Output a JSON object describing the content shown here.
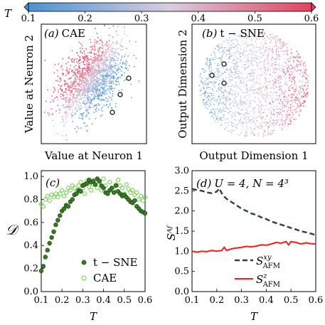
{
  "colorbar": {
    "label": "T",
    "ticks": [
      "0.1",
      "0.2",
      "0.3",
      "0.4",
      "0.5",
      "0.6"
    ],
    "min": 0.1,
    "max": 0.6,
    "low_color": "#4a93d4",
    "mid_color": "#d9cde0",
    "high_color": "#e2425f"
  },
  "panels": {
    "a": {
      "tag": "(a)",
      "title": "CAE",
      "xlabel": "Value at Neuron 1",
      "ylabel": "Value at Neuron 2"
    },
    "b": {
      "tag": "(b)",
      "title": "t − SNE",
      "xlabel": "Output Dimension 1",
      "ylabel": "Output Dimension 2"
    },
    "c": {
      "tag": "(c)",
      "xlabel": "T",
      "ylabel": "𝒟"
    },
    "d": {
      "tag": "(d)",
      "params": "U = 4,  N = 4³",
      "xlabel": "T",
      "ylabel": "Sᴬᶠ"
    }
  },
  "chart_data": [
    {
      "panel": "c",
      "type": "scatter",
      "xlim": [
        0.1,
        0.6
      ],
      "ylim": [
        0.0,
        1.05
      ],
      "xticks": [
        "0.1",
        "0.2",
        "0.3",
        "0.4",
        "0.5",
        "0.6"
      ],
      "yticks": [
        "0.0",
        "0.2",
        "0.4",
        "0.6",
        "0.8",
        "1.0"
      ],
      "legend_position": "bottom-right",
      "series": [
        {
          "name": "t − SNE",
          "marker": "filled-circle",
          "color": "#3c7a27",
          "edge": "#1f4a12",
          "x": [
            0.1,
            0.11,
            0.12,
            0.13,
            0.14,
            0.15,
            0.16,
            0.17,
            0.18,
            0.19,
            0.2,
            0.21,
            0.22,
            0.23,
            0.24,
            0.25,
            0.26,
            0.27,
            0.28,
            0.29,
            0.3,
            0.31,
            0.32,
            0.33,
            0.34,
            0.35,
            0.36,
            0.37,
            0.38,
            0.39,
            0.4,
            0.41,
            0.42,
            0.43,
            0.44,
            0.45,
            0.46,
            0.47,
            0.48,
            0.49,
            0.5,
            0.51,
            0.52,
            0.53,
            0.54,
            0.55,
            0.56,
            0.57,
            0.58,
            0.59,
            0.6
          ],
          "y": [
            0.18,
            0.22,
            0.3,
            0.36,
            0.42,
            0.47,
            0.52,
            0.58,
            0.62,
            0.66,
            0.7,
            0.72,
            0.75,
            0.74,
            0.78,
            0.8,
            0.84,
            0.85,
            0.88,
            0.87,
            0.92,
            0.93,
            0.94,
            0.97,
            0.95,
            0.96,
            0.93,
            0.98,
            0.96,
            0.92,
            0.9,
            0.86,
            0.85,
            0.88,
            0.9,
            0.86,
            0.92,
            0.87,
            0.85,
            0.83,
            0.84,
            0.82,
            0.8,
            0.78,
            0.77,
            0.79,
            0.74,
            0.72,
            0.7,
            0.69,
            0.68
          ]
        },
        {
          "name": "CAE",
          "marker": "open-circle",
          "color": "#6fcf4a",
          "x": [
            0.1,
            0.11,
            0.12,
            0.13,
            0.14,
            0.15,
            0.16,
            0.17,
            0.18,
            0.19,
            0.2,
            0.21,
            0.22,
            0.23,
            0.24,
            0.25,
            0.26,
            0.27,
            0.28,
            0.29,
            0.3,
            0.31,
            0.32,
            0.33,
            0.34,
            0.35,
            0.36,
            0.37,
            0.38,
            0.39,
            0.4,
            0.41,
            0.42,
            0.43,
            0.44,
            0.45,
            0.46,
            0.47,
            0.48,
            0.49,
            0.5,
            0.51,
            0.52,
            0.53,
            0.54,
            0.55,
            0.56,
            0.57,
            0.58,
            0.59,
            0.6
          ],
          "y": [
            0.76,
            0.74,
            0.8,
            0.83,
            0.79,
            0.84,
            0.82,
            0.85,
            0.82,
            0.85,
            0.88,
            0.83,
            0.86,
            0.9,
            0.88,
            0.92,
            0.9,
            0.87,
            0.92,
            0.95,
            0.9,
            0.85,
            0.96,
            0.91,
            0.88,
            0.93,
            0.97,
            0.9,
            0.95,
            0.88,
            0.98,
            0.92,
            0.86,
            0.95,
            0.9,
            0.88,
            0.93,
            0.97,
            0.92,
            0.9,
            0.85,
            0.93,
            0.89,
            0.86,
            0.88,
            0.84,
            0.86,
            0.8,
            0.83,
            0.79,
            0.82
          ]
        }
      ]
    },
    {
      "panel": "d",
      "type": "line",
      "xlim": [
        0.1,
        0.6
      ],
      "ylim": [
        0.0,
        3.0
      ],
      "xticks": [
        "0.1",
        "0.2",
        "0.3",
        "0.4",
        "0.5",
        "0.6"
      ],
      "yticks": [
        "0.0",
        "0.5",
        "1.0",
        "1.5",
        "2.0",
        "2.5",
        "3.0"
      ],
      "legend_position": "bottom-right",
      "series": [
        {
          "name": "S^xy_AFM",
          "legend_main": "S",
          "legend_sup": "xy",
          "legend_sub": "AFM",
          "style": "dashed",
          "color": "#2c3e50",
          "x": [
            0.1,
            0.12,
            0.14,
            0.16,
            0.18,
            0.2,
            0.21,
            0.22,
            0.23,
            0.24,
            0.26,
            0.28,
            0.3,
            0.32,
            0.34,
            0.36,
            0.38,
            0.4,
            0.42,
            0.44,
            0.46,
            0.48,
            0.5,
            0.52,
            0.54,
            0.56,
            0.58,
            0.6
          ],
          "y": [
            2.55,
            2.52,
            2.5,
            2.46,
            2.44,
            2.48,
            2.56,
            2.44,
            2.36,
            2.3,
            2.22,
            2.14,
            2.06,
            2.0,
            1.94,
            1.9,
            1.84,
            1.8,
            1.74,
            1.7,
            1.66,
            1.62,
            1.58,
            1.54,
            1.5,
            1.47,
            1.44,
            1.4
          ]
        },
        {
          "name": "S^z_AFM",
          "legend_main": "S",
          "legend_sup": "z",
          "legend_sub": "AFM",
          "style": "solid",
          "color": "#ff1a1a",
          "x": [
            0.1,
            0.12,
            0.14,
            0.16,
            0.18,
            0.2,
            0.22,
            0.23,
            0.24,
            0.26,
            0.28,
            0.3,
            0.32,
            0.34,
            0.36,
            0.38,
            0.4,
            0.42,
            0.44,
            0.46,
            0.48,
            0.49,
            0.5,
            0.52,
            0.54,
            0.56,
            0.58,
            0.6
          ],
          "y": [
            1.0,
            0.98,
            1.0,
            0.99,
            1.02,
            1.0,
            1.02,
            1.1,
            1.02,
            1.06,
            1.08,
            1.1,
            1.12,
            1.11,
            1.13,
            1.16,
            1.15,
            1.18,
            1.22,
            1.2,
            1.24,
            1.16,
            1.24,
            1.22,
            1.18,
            1.21,
            1.19,
            1.18
          ]
        }
      ]
    },
    {
      "panel": "a",
      "type": "scatter",
      "color_by": "T",
      "highlighted_points": 3
    },
    {
      "panel": "b",
      "type": "scatter",
      "color_by": "T",
      "highlighted_points": 3
    }
  ]
}
